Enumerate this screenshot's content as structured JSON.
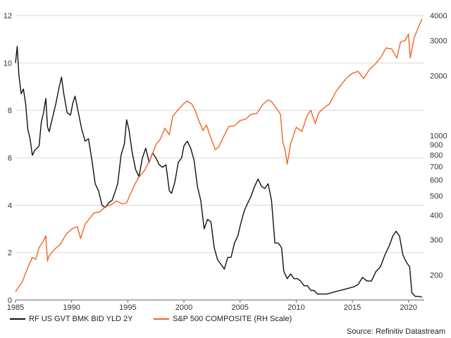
{
  "chart_data": {
    "type": "line",
    "title": "",
    "xlabel": "",
    "ylabel_left": "",
    "ylabel_right": "",
    "x_axis": {
      "type": "date",
      "range": [
        1985.0,
        2021.4
      ],
      "ticks": [
        1985,
        1990,
        1995,
        2000,
        2005,
        2010,
        2015,
        2020
      ]
    },
    "y_left": {
      "range": [
        0,
        12
      ],
      "ticks": [
        0,
        2,
        4,
        6,
        8,
        10,
        12
      ],
      "scale": "linear"
    },
    "y_right": {
      "range": [
        150,
        4000
      ],
      "scale": "log",
      "ticks": [
        200,
        300,
        400,
        500,
        600,
        700,
        800,
        900,
        1000,
        2000,
        3000,
        4000
      ]
    },
    "grid": "horizontal",
    "legend_position": "bottom",
    "colors": {
      "yield": "#111111",
      "spx": "#f26522",
      "grid": "#d9d9d9"
    },
    "series": [
      {
        "name": "RF US GVT BMK BID YLD 2Y",
        "axis": "left",
        "x": [
          1985.0,
          1985.15,
          1985.3,
          1985.5,
          1985.7,
          1985.9,
          1986.1,
          1986.3,
          1986.5,
          1986.7,
          1986.9,
          1987.1,
          1987.3,
          1987.5,
          1987.7,
          1987.85,
          1988.0,
          1988.3,
          1988.6,
          1988.9,
          1989.1,
          1989.3,
          1989.6,
          1989.9,
          1990.1,
          1990.3,
          1990.6,
          1990.9,
          1991.2,
          1991.5,
          1991.8,
          1992.1,
          1992.4,
          1992.7,
          1993.0,
          1993.3,
          1993.6,
          1993.9,
          1994.1,
          1994.4,
          1994.7,
          1994.9,
          1995.1,
          1995.4,
          1995.7,
          1996.0,
          1996.3,
          1996.6,
          1996.9,
          1997.2,
          1997.5,
          1997.8,
          1998.1,
          1998.4,
          1998.7,
          1998.9,
          1999.2,
          1999.5,
          1999.8,
          2000.0,
          2000.3,
          2000.6,
          2000.9,
          2001.2,
          2001.5,
          2001.8,
          2002.1,
          2002.4,
          2002.7,
          2003.0,
          2003.3,
          2003.6,
          2003.9,
          2004.2,
          2004.5,
          2004.8,
          2005.1,
          2005.4,
          2005.7,
          2006.0,
          2006.3,
          2006.6,
          2006.9,
          2007.2,
          2007.5,
          2007.8,
          2008.1,
          2008.4,
          2008.7,
          2008.9,
          2009.2,
          2009.5,
          2009.8,
          2010.1,
          2010.4,
          2010.7,
          2011.0,
          2011.3,
          2011.6,
          2011.9,
          2012.3,
          2012.7,
          2013.1,
          2013.5,
          2013.9,
          2014.3,
          2014.7,
          2015.1,
          2015.5,
          2015.9,
          2016.3,
          2016.7,
          2017.1,
          2017.5,
          2017.9,
          2018.3,
          2018.6,
          2018.9,
          2019.2,
          2019.5,
          2019.8,
          2020.1,
          2020.3,
          2020.6,
          2020.9,
          2021.2
        ],
        "values": [
          10.0,
          10.7,
          9.5,
          8.7,
          8.9,
          8.3,
          7.2,
          6.8,
          6.1,
          6.3,
          6.4,
          6.5,
          7.5,
          7.9,
          8.5,
          7.3,
          7.1,
          7.7,
          8.3,
          9.0,
          9.4,
          8.7,
          7.9,
          7.8,
          8.3,
          8.6,
          7.9,
          7.2,
          6.7,
          6.8,
          5.9,
          4.9,
          4.6,
          4.0,
          3.9,
          4.1,
          4.2,
          4.6,
          4.9,
          6.1,
          6.6,
          7.6,
          7.2,
          6.2,
          5.5,
          5.2,
          6.0,
          6.4,
          5.8,
          6.2,
          6.0,
          5.7,
          5.6,
          5.7,
          4.6,
          4.5,
          5.0,
          5.8,
          6.0,
          6.5,
          6.7,
          6.4,
          5.9,
          4.8,
          4.2,
          3.0,
          3.4,
          3.3,
          2.2,
          1.7,
          1.5,
          1.3,
          1.8,
          1.8,
          2.4,
          2.7,
          3.3,
          3.8,
          4.1,
          4.4,
          4.8,
          5.1,
          4.8,
          4.7,
          4.9,
          4.2,
          2.4,
          2.4,
          2.2,
          1.2,
          0.9,
          1.1,
          0.9,
          0.9,
          0.8,
          0.6,
          0.6,
          0.4,
          0.4,
          0.25,
          0.25,
          0.25,
          0.3,
          0.35,
          0.4,
          0.45,
          0.5,
          0.55,
          0.65,
          0.95,
          0.8,
          0.8,
          1.2,
          1.4,
          1.9,
          2.3,
          2.7,
          2.9,
          2.7,
          1.9,
          1.6,
          1.4,
          0.3,
          0.15,
          0.15,
          0.12
        ]
      },
      {
        "name": "S&P 500 COMPOSITE (RH Scale)",
        "axis": "right",
        "x": [
          1985.0,
          1985.3,
          1985.6,
          1985.9,
          1986.2,
          1986.5,
          1986.8,
          1987.1,
          1987.4,
          1987.7,
          1987.85,
          1988.0,
          1988.5,
          1989.0,
          1989.5,
          1990.0,
          1990.5,
          1990.8,
          1991.2,
          1991.6,
          1992.0,
          1992.5,
          1993.0,
          1993.5,
          1994.0,
          1994.5,
          1994.9,
          1995.3,
          1995.7,
          1996.0,
          1996.5,
          1997.0,
          1997.5,
          1997.9,
          1998.3,
          1998.7,
          1999.0,
          1999.5,
          2000.0,
          2000.3,
          2000.7,
          2001.0,
          2001.3,
          2001.7,
          2002.0,
          2002.4,
          2002.8,
          2003.1,
          2003.5,
          2004.0,
          2004.5,
          2005.0,
          2005.5,
          2006.0,
          2006.5,
          2007.0,
          2007.5,
          2007.8,
          2008.2,
          2008.6,
          2008.8,
          2009.0,
          2009.2,
          2009.5,
          2010.0,
          2010.5,
          2011.0,
          2011.3,
          2011.7,
          2012.0,
          2012.5,
          2013.0,
          2013.5,
          2014.0,
          2014.5,
          2015.0,
          2015.5,
          2016.0,
          2016.5,
          2017.0,
          2017.5,
          2018.0,
          2018.5,
          2018.95,
          2019.3,
          2019.7,
          2020.0,
          2020.15,
          2020.5,
          2020.9,
          2021.2
        ],
        "values": [
          165,
          175,
          185,
          205,
          225,
          245,
          240,
          275,
          290,
          315,
          235,
          250,
          270,
          285,
          320,
          340,
          350,
          305,
          360,
          385,
          410,
          415,
          440,
          450,
          470,
          455,
          460,
          520,
          580,
          620,
          670,
          760,
          900,
          960,
          1090,
          1010,
          1250,
          1350,
          1450,
          1490,
          1440,
          1340,
          1200,
          1060,
          1130,
          970,
          850,
          880,
          980,
          1110,
          1120,
          1190,
          1210,
          1280,
          1290,
          1430,
          1510,
          1480,
          1380,
          1280,
          930,
          850,
          720,
          910,
          1100,
          1050,
          1270,
          1340,
          1150,
          1300,
          1380,
          1450,
          1650,
          1800,
          1950,
          2050,
          2100,
          1930,
          2140,
          2270,
          2450,
          2750,
          2720,
          2450,
          2950,
          3000,
          3230,
          2450,
          3100,
          3500,
          3850
        ]
      }
    ]
  },
  "legend": {
    "items": [
      {
        "label": "RF US GVT BMK BID YLD 2Y"
      },
      {
        "label": "S&P 500 COMPOSITE (RH Scale)"
      }
    ]
  },
  "source": {
    "text": "Source: Refinitiv Datastream"
  }
}
